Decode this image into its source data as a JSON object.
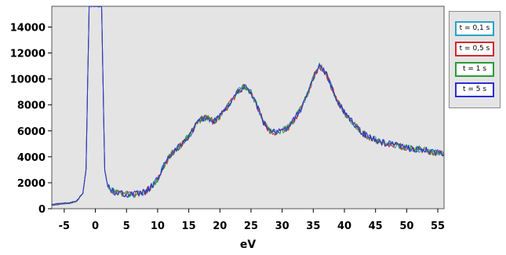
{
  "chart_data": {
    "type": "line",
    "xlabel": "eV",
    "ylabel": "",
    "xlim": [
      -7,
      56
    ],
    "ylim": [
      0,
      15600
    ],
    "xticks": [
      -5,
      0,
      5,
      10,
      15,
      20,
      25,
      30,
      35,
      40,
      45,
      50,
      55
    ],
    "yticks": [
      0,
      2000,
      4000,
      6000,
      8000,
      10000,
      12000,
      14000
    ],
    "grid": false,
    "legend_position": "right",
    "x": [
      -7,
      -6,
      -5,
      -4,
      -3,
      -2,
      -1.5,
      -1,
      0,
      1,
      1.5,
      2,
      3,
      4,
      5,
      6,
      7,
      8,
      9,
      10,
      11,
      12,
      13,
      14,
      15,
      16,
      17,
      18,
      19,
      20,
      21,
      22,
      23,
      24,
      25,
      26,
      27,
      28,
      29,
      30,
      31,
      32,
      33,
      34,
      35,
      36,
      37,
      38,
      39,
      40,
      41,
      42,
      43,
      44,
      45,
      46,
      47,
      48,
      49,
      50,
      51,
      52,
      53,
      54,
      55,
      56
    ],
    "series": [
      {
        "name": "t = 0,1 s",
        "color": "#2aa3c8",
        "values": [
          300,
          350,
          400,
          450,
          600,
          1200,
          3000,
          15600,
          15600,
          15600,
          3000,
          1700,
          1300,
          1200,
          1100,
          1100,
          1150,
          1300,
          1700,
          2300,
          3300,
          4100,
          4600,
          5000,
          5600,
          6300,
          6900,
          7000,
          6700,
          7100,
          7700,
          8400,
          9100,
          9400,
          9000,
          7900,
          6700,
          6000,
          5900,
          6000,
          6300,
          6900,
          7700,
          8700,
          10100,
          11000,
          10500,
          9300,
          8200,
          7400,
          6800,
          6300,
          5800,
          5500,
          5300,
          5100,
          5000,
          4900,
          4800,
          4700,
          4600,
          4600,
          4500,
          4400,
          4300,
          4200
        ]
      },
      {
        "name": "t = 0,5 s",
        "color": "#d8262e",
        "values": [
          300,
          350,
          400,
          450,
          600,
          1200,
          3000,
          15600,
          15600,
          15600,
          3000,
          1700,
          1300,
          1200,
          1100,
          1100,
          1150,
          1300,
          1700,
          2300,
          3300,
          4100,
          4600,
          5000,
          5600,
          6300,
          6900,
          7000,
          6700,
          7100,
          7700,
          8400,
          9100,
          9400,
          9000,
          7900,
          6700,
          6000,
          5900,
          6000,
          6300,
          6900,
          7700,
          8700,
          10100,
          11000,
          10500,
          9300,
          8200,
          7400,
          6800,
          6300,
          5800,
          5500,
          5300,
          5100,
          5000,
          4900,
          4800,
          4700,
          4600,
          4600,
          4500,
          4400,
          4300,
          4200
        ]
      },
      {
        "name": "t = 1 s",
        "color": "#2e9a3a",
        "values": [
          300,
          350,
          400,
          450,
          600,
          1200,
          3000,
          15600,
          15600,
          15600,
          3000,
          1700,
          1300,
          1200,
          1100,
          1100,
          1150,
          1300,
          1700,
          2300,
          3300,
          4100,
          4600,
          5000,
          5600,
          6300,
          6900,
          7000,
          6700,
          7100,
          7700,
          8400,
          9100,
          9400,
          9000,
          7900,
          6700,
          6000,
          5900,
          6000,
          6300,
          6900,
          7700,
          8700,
          10100,
          11000,
          10500,
          9300,
          8200,
          7400,
          6800,
          6300,
          5800,
          5500,
          5300,
          5100,
          5000,
          4900,
          4800,
          4700,
          4600,
          4600,
          4500,
          4400,
          4300,
          4200
        ]
      },
      {
        "name": "t = 5 s",
        "color": "#2c2fd6",
        "values": [
          300,
          350,
          400,
          450,
          600,
          1200,
          3000,
          15600,
          15600,
          15600,
          3000,
          1700,
          1300,
          1200,
          1100,
          1100,
          1150,
          1300,
          1700,
          2300,
          3300,
          4100,
          4600,
          5000,
          5600,
          6300,
          6900,
          7000,
          6700,
          7100,
          7700,
          8400,
          9100,
          9400,
          9000,
          7900,
          6700,
          6000,
          5900,
          6000,
          6300,
          6900,
          7700,
          8700,
          10100,
          11000,
          10500,
          9300,
          8200,
          7400,
          6800,
          6300,
          5800,
          5500,
          5300,
          5100,
          5000,
          4900,
          4800,
          4700,
          4600,
          4600,
          4500,
          4400,
          4300,
          4200
        ]
      }
    ]
  }
}
